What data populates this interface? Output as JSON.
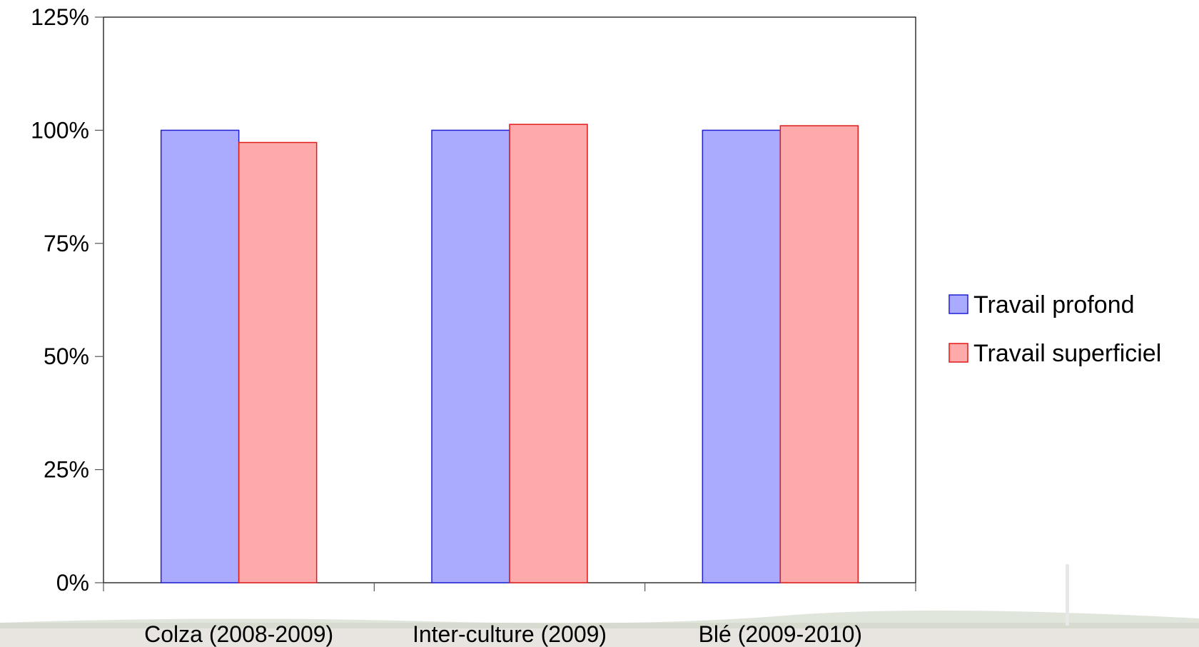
{
  "chart_data": {
    "type": "bar",
    "categories": [
      "Colza (2008-2009)",
      "Inter-culture (2009)",
      "Blé (2009-2010)"
    ],
    "series": [
      {
        "name": "Travail profond",
        "values": [
          100,
          100,
          100
        ],
        "fill": "#aaaaff",
        "stroke": "#1f1fd6"
      },
      {
        "name": "Travail superficiel",
        "values": [
          97.3,
          101.3,
          101.0
        ],
        "fill": "#ffaaaa",
        "stroke": "#e01b1b"
      }
    ],
    "ylim": [
      0,
      125
    ],
    "yticks": [
      0,
      25,
      50,
      75,
      100,
      125
    ],
    "ytick_labels": [
      "0%",
      "25%",
      "50%",
      "75%",
      "100%",
      "125%"
    ],
    "title": "",
    "xlabel": "",
    "ylabel": "",
    "grid": false,
    "legend_position": "right"
  }
}
